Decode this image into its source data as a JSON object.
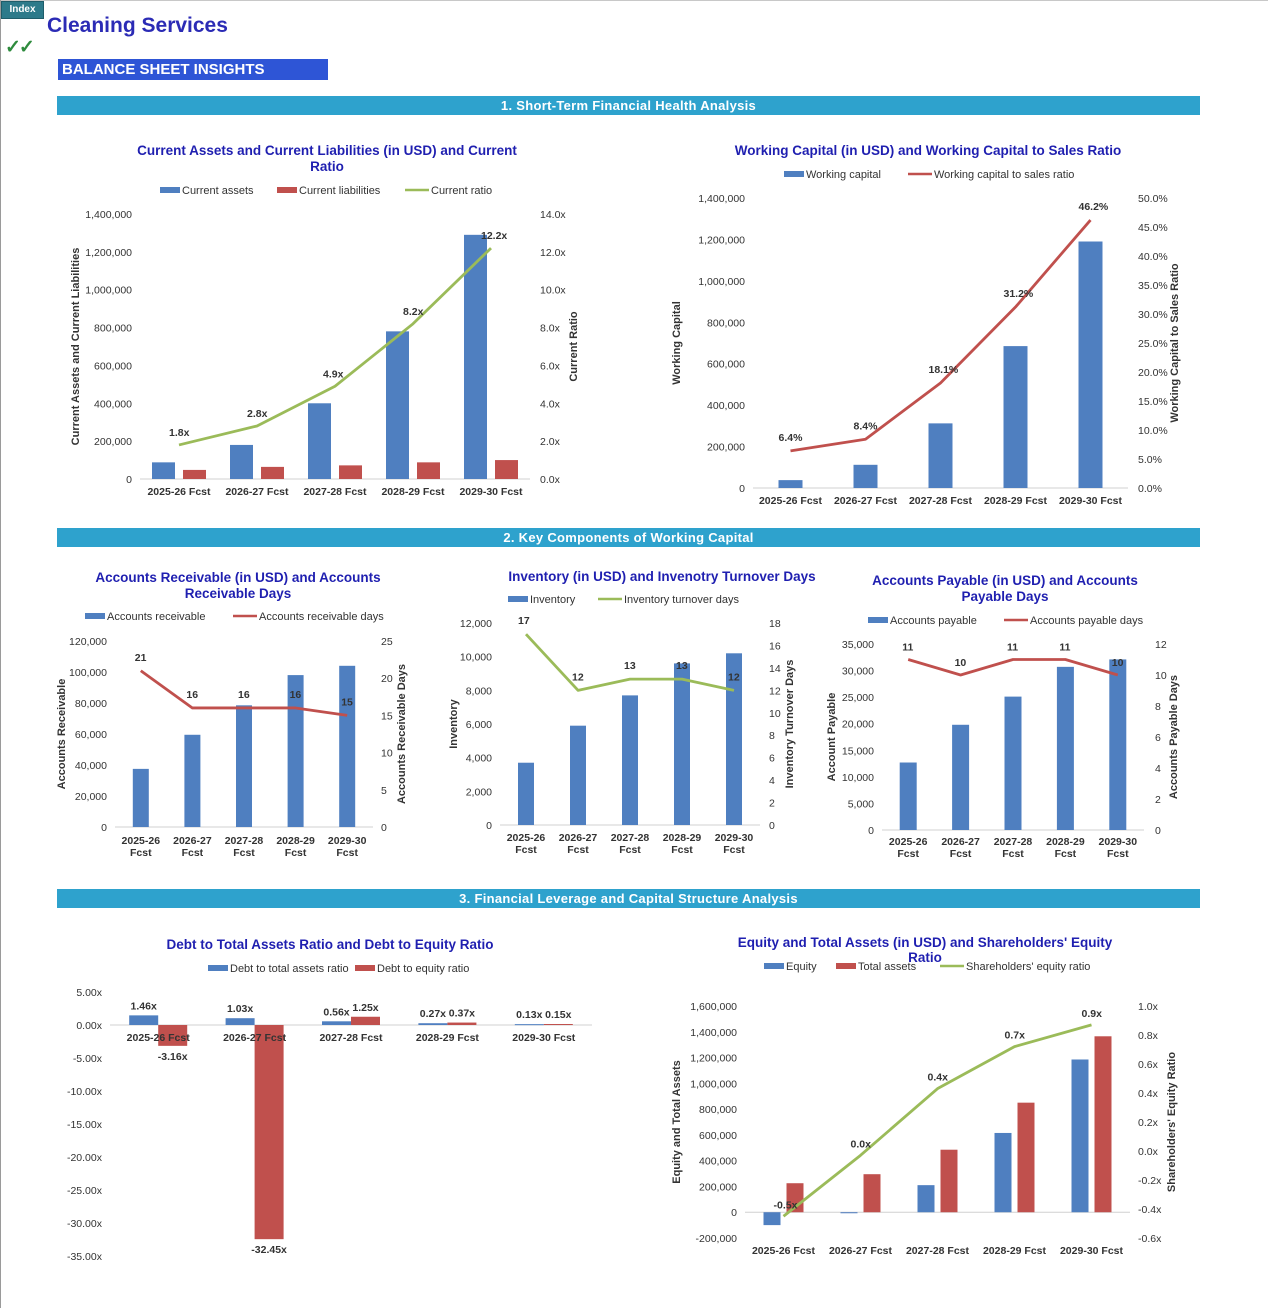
{
  "header": {
    "index_label": "Index",
    "checkmark": "✓✓",
    "title": "Cleaning Services",
    "subtitle": "BALANCE SHEET INSIGHTS"
  },
  "sections": [
    {
      "label": "1. Short-Term Financial Health Analysis"
    },
    {
      "label": "2. Key Components of Working Capital"
    },
    {
      "label": "3. Financial Leverage and Capital Structure Analysis"
    }
  ],
  "colors": {
    "blue": "#4f7fc0",
    "red": "#c0504d",
    "green": "#9bbb59",
    "title": "#1f1fb0",
    "band": "#2ea2cd"
  },
  "chart_data": [
    {
      "id": "current_ratio",
      "type": "bar+line",
      "title": "Current Assets and Current Liabilities (in USD) and Current Ratio",
      "ylabel": "Current Assets and Current Liabilities",
      "y2label": "Current Ratio",
      "ylim": [
        0,
        1400000
      ],
      "y2lim": [
        0,
        14
      ],
      "yticks": [
        "0",
        "200,000",
        "400,000",
        "600,000",
        "800,000",
        "1,000,000",
        "1,200,000",
        "1,400,000"
      ],
      "y2ticks": [
        "0.0x",
        "2.0x",
        "4.0x",
        "6.0x",
        "8.0x",
        "10.0x",
        "12.0x",
        "14.0x"
      ],
      "categories": [
        "2025-26 Fcst",
        "2026-27 Fcst",
        "2027-28 Fcst",
        "2028-29 Fcst",
        "2029-30 Fcst"
      ],
      "series": [
        {
          "name": "Current assets",
          "kind": "bar",
          "color": "#4f7fc0",
          "values": [
            88000,
            180000,
            400000,
            780000,
            1290000
          ]
        },
        {
          "name": "Current liabilities",
          "kind": "bar",
          "color": "#c0504d",
          "values": [
            48000,
            64000,
            72000,
            88000,
            100000
          ]
        },
        {
          "name": "Current ratio",
          "kind": "line",
          "axis": "right",
          "color": "#9bbb59",
          "values": [
            1.8,
            2.8,
            4.9,
            8.2,
            12.2
          ],
          "labels": [
            "1.8x",
            "2.8x",
            "4.9x",
            "8.2x",
            "12.2x"
          ]
        }
      ]
    },
    {
      "id": "working_capital",
      "type": "bar+line",
      "title": "Working Capital (in USD) and Working Capital to Sales Ratio",
      "ylabel": "Working Capital",
      "y2label": "Working Capital to Sales Ratio",
      "ylim": [
        0,
        1400000
      ],
      "y2lim": [
        0,
        50
      ],
      "yticks": [
        "0",
        "200,000",
        "400,000",
        "600,000",
        "800,000",
        "1,000,000",
        "1,200,000",
        "1,400,000"
      ],
      "y2ticks": [
        "0.0%",
        "5.0%",
        "10.0%",
        "15.0%",
        "20.0%",
        "25.0%",
        "30.0%",
        "35.0%",
        "40.0%",
        "45.0%",
        "50.0%"
      ],
      "categories": [
        "2025-26 Fcst",
        "2026-27 Fcst",
        "2027-28 Fcst",
        "2028-29 Fcst",
        "2029-30 Fcst"
      ],
      "series": [
        {
          "name": "Working capital",
          "kind": "bar",
          "color": "#4f7fc0",
          "values": [
            38000,
            112000,
            312000,
            685000,
            1190000
          ]
        },
        {
          "name": "Working capital to sales ratio",
          "kind": "line",
          "axis": "right",
          "color": "#c0504d",
          "values": [
            6.4,
            8.4,
            18.1,
            31.2,
            46.2
          ],
          "labels": [
            "6.4%",
            "8.4%",
            "18.1%",
            "31.2%",
            "46.2%"
          ]
        }
      ]
    },
    {
      "id": "accounts_receivable",
      "type": "bar+line",
      "title": "Accounts Receivable (in USD) and Accounts Receivable Days",
      "ylabel": "Accounts Receivable",
      "y2label": "Accounts Receivable Days",
      "ylim": [
        0,
        120000
      ],
      "y2lim": [
        0,
        25
      ],
      "yticks": [
        "0",
        "20,000",
        "40,000",
        "60,000",
        "80,000",
        "100,000",
        "120,000"
      ],
      "y2ticks": [
        "0",
        "5",
        "10",
        "15",
        "20",
        "25"
      ],
      "categories": [
        "2025-26 Fcst",
        "2026-27 Fcst",
        "2027-28 Fcst",
        "2028-29 Fcst",
        "2029-30 Fcst"
      ],
      "series": [
        {
          "name": "Accounts receivable",
          "kind": "bar",
          "color": "#4f7fc0",
          "values": [
            37500,
            59500,
            78500,
            98000,
            104000
          ]
        },
        {
          "name": "Accounts receivable days",
          "kind": "line",
          "axis": "right",
          "color": "#c0504d",
          "values": [
            21,
            16,
            16,
            16,
            15
          ],
          "labels": [
            "21",
            "16",
            "16",
            "16",
            "15"
          ]
        }
      ]
    },
    {
      "id": "inventory",
      "type": "bar+line",
      "title": "Inventory (in USD) and Invenotry Turnover Days",
      "ylabel": "Inventory",
      "y2label": "Inventory Turnover Days",
      "ylim": [
        0,
        12000
      ],
      "y2lim": [
        0,
        18
      ],
      "yticks": [
        "0",
        "2,000",
        "4,000",
        "6,000",
        "8,000",
        "10,000",
        "12,000"
      ],
      "y2ticks": [
        "0",
        "2",
        "4",
        "6",
        "8",
        "10",
        "12",
        "14",
        "16",
        "18"
      ],
      "categories": [
        "2025-26 Fcst",
        "2026-27 Fcst",
        "2027-28 Fcst",
        "2028-29 Fcst",
        "2029-30 Fcst"
      ],
      "series": [
        {
          "name": "Inventory",
          "kind": "bar",
          "color": "#4f7fc0",
          "values": [
            3700,
            5900,
            7700,
            9600,
            10200
          ]
        },
        {
          "name": "Inventory turnover days",
          "kind": "line",
          "axis": "right",
          "color": "#9bbb59",
          "values": [
            17,
            12,
            13,
            13,
            12
          ],
          "labels": [
            "17",
            "12",
            "13",
            "13",
            "12"
          ]
        }
      ]
    },
    {
      "id": "accounts_payable",
      "type": "bar+line",
      "title": "Accounts Payable (in USD) and Accounts Payable Days",
      "ylabel": "Account Payable",
      "y2label": "Accounts Payable Days",
      "ylim": [
        0,
        35000
      ],
      "y2lim": [
        0,
        12
      ],
      "yticks": [
        "0",
        "5,000",
        "10,000",
        "15,000",
        "20,000",
        "25,000",
        "30,000",
        "35,000"
      ],
      "y2ticks": [
        "0",
        "2",
        "4",
        "6",
        "8",
        "10",
        "12"
      ],
      "categories": [
        "2025-26 Fcst",
        "2026-27 Fcst",
        "2027-28 Fcst",
        "2028-29 Fcst",
        "2029-30 Fcst"
      ],
      "series": [
        {
          "name": "Accounts payable",
          "kind": "bar",
          "color": "#4f7fc0",
          "values": [
            12700,
            19800,
            25100,
            30700,
            32100
          ]
        },
        {
          "name": "Accounts payable days",
          "kind": "line",
          "axis": "right",
          "color": "#c0504d",
          "values": [
            11,
            10,
            11,
            11,
            10
          ],
          "labels": [
            "11",
            "10",
            "11",
            "11",
            "10"
          ]
        }
      ]
    },
    {
      "id": "debt_ratios",
      "type": "bar",
      "title": "Debt to Total Assets Ratio and Debt to Equity Ratio",
      "ylim": [
        -35,
        5
      ],
      "yticks": [
        "-35.00x",
        "-30.00x",
        "-25.00x",
        "-20.00x",
        "-15.00x",
        "-10.00x",
        "-5.00x",
        "0.00x",
        "5.00x"
      ],
      "categories": [
        "2025-26 Fcst",
        "2026-27 Fcst",
        "2027-28 Fcst",
        "2028-29 Fcst",
        "2029-30 Fcst"
      ],
      "series": [
        {
          "name": "Debt to total assets ratio",
          "kind": "bar",
          "color": "#4f7fc0",
          "values": [
            1.46,
            1.03,
            0.56,
            0.27,
            0.13
          ],
          "labels": [
            "1.46x",
            "1.03x",
            "0.56x",
            "0.27x",
            "0.13x"
          ]
        },
        {
          "name": "Debt to equity ratio",
          "kind": "bar",
          "color": "#c0504d",
          "values": [
            -3.16,
            -32.45,
            1.25,
            0.37,
            0.15
          ],
          "labels": [
            "-3.16x",
            "-32.45x",
            "1.25x",
            "0.37x",
            "0.15x"
          ]
        }
      ]
    },
    {
      "id": "equity_ratio",
      "type": "bar+line",
      "title": "Equity and Total Assets (in USD) and Shareholders' Equity Ratio",
      "ylabel": "Equity and Total Assets",
      "y2label": "Shareholders' Equity  Ratio",
      "ylim": [
        -200000,
        1600000
      ],
      "y2lim": [
        -0.6,
        1.0
      ],
      "yticks": [
        "-200,000",
        "0",
        "200,000",
        "400,000",
        "600,000",
        "800,000",
        "1,000,000",
        "1,200,000",
        "1,400,000",
        "1,600,000"
      ],
      "y2ticks": [
        "-0.6x",
        "-0.4x",
        "-0.2x",
        "0.0x",
        "0.2x",
        "0.4x",
        "0.6x",
        "0.8x",
        "1.0x"
      ],
      "categories": [
        "2025-26 Fcst",
        "2026-27 Fcst",
        "2027-28 Fcst",
        "2028-29 Fcst",
        "2029-30 Fcst"
      ],
      "series": [
        {
          "name": "Equity",
          "kind": "bar",
          "color": "#4f7fc0",
          "values": [
            -100000,
            -8000,
            210000,
            615000,
            1185000
          ]
        },
        {
          "name": "Total assets",
          "kind": "bar",
          "color": "#c0504d",
          "values": [
            225000,
            295000,
            485000,
            850000,
            1365000
          ]
        },
        {
          "name": "Shareholders' equity ratio",
          "kind": "line",
          "axis": "right",
          "color": "#9bbb59",
          "values": [
            -0.45,
            -0.03,
            0.43,
            0.72,
            0.87
          ],
          "labels": [
            "-0.5x",
            "0.0x",
            "0.4x",
            "0.7x",
            "0.9x"
          ]
        }
      ]
    }
  ]
}
